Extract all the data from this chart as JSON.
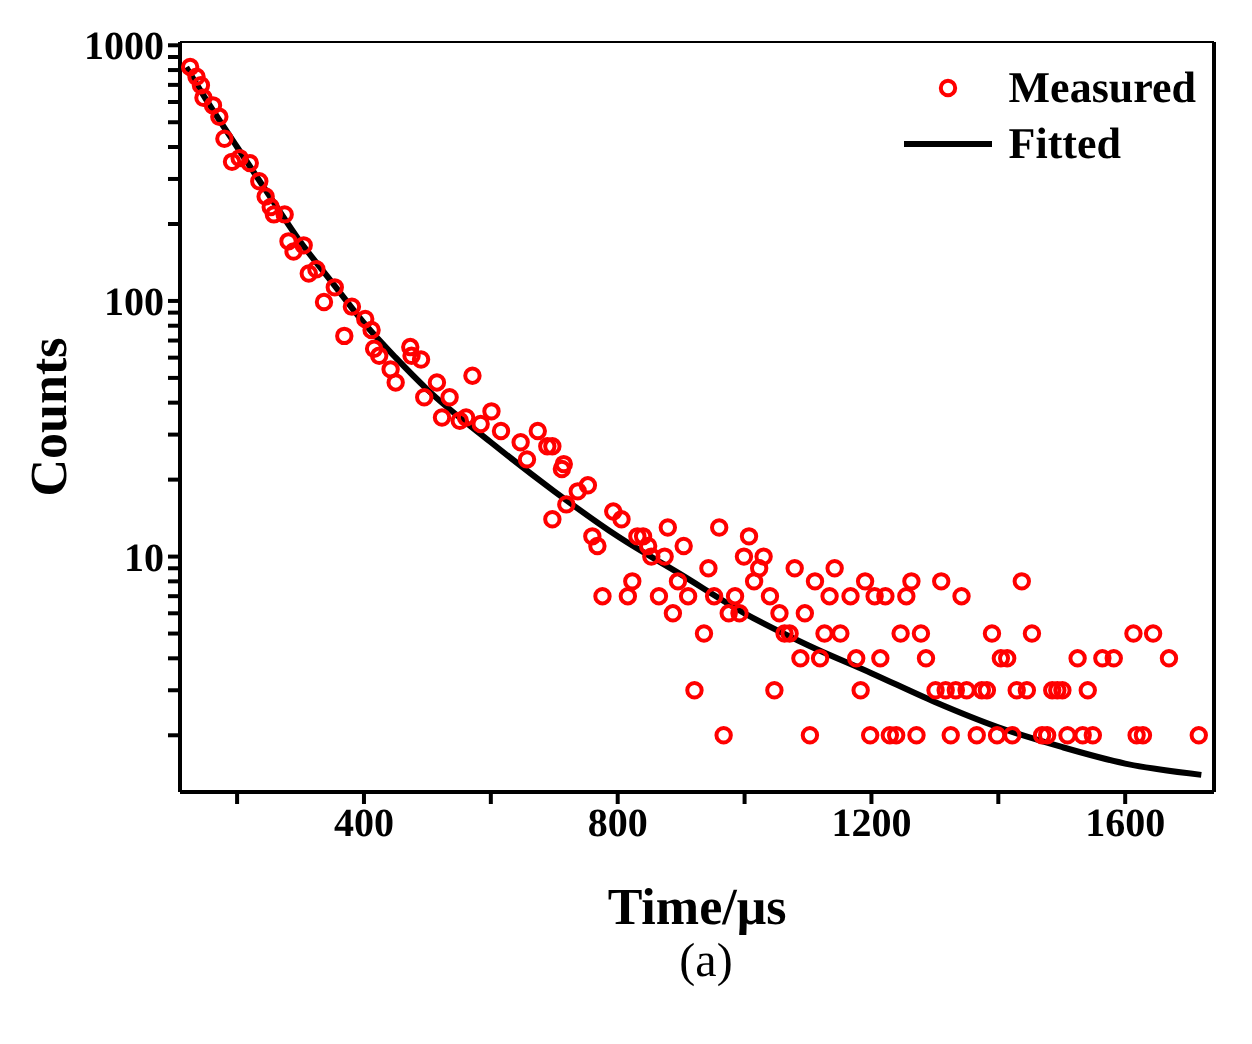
{
  "chart_data": {
    "type": "scatter",
    "xlabel": "Time/μs",
    "ylabel": "Counts",
    "annotations": [
      "(a)"
    ],
    "log": "y",
    "legend": "top right",
    "xlim": [
      110,
      1740
    ],
    "ylim": [
      1.2,
      1030
    ],
    "xticks": [
      {
        "value": 200,
        "label": null
      },
      400,
      {
        "value": 600,
        "label": null
      },
      800,
      {
        "value": 1000,
        "label": null
      },
      1200,
      {
        "value": 1400,
        "label": null
      },
      1600
    ],
    "yticks": [
      {
        "value": 2,
        "label": null
      },
      {
        "value": 3,
        "label": null
      },
      {
        "value": 4,
        "label": null
      },
      {
        "value": 5,
        "label": null
      },
      {
        "value": 6,
        "label": null
      },
      {
        "value": 7,
        "label": null
      },
      {
        "value": 8,
        "label": null
      },
      {
        "value": 9,
        "label": null
      },
      10,
      {
        "value": 20,
        "label": null
      },
      {
        "value": 30,
        "label": null
      },
      {
        "value": 40,
        "label": null
      },
      {
        "value": 50,
        "label": null
      },
      {
        "value": 60,
        "label": null
      },
      {
        "value": 70,
        "label": null
      },
      {
        "value": 80,
        "label": null
      },
      {
        "value": 90,
        "label": null
      },
      100,
      {
        "value": 200,
        "label": null
      },
      {
        "value": 300,
        "label": null
      },
      {
        "value": 400,
        "label": null
      },
      {
        "value": 500,
        "label": null
      },
      {
        "value": 600,
        "label": null
      },
      {
        "value": 700,
        "label": null
      },
      {
        "value": 800,
        "label": null
      },
      {
        "value": 900,
        "label": null
      },
      1000
    ],
    "series": [
      {
        "name": "Measured",
        "marker": "circle",
        "color": "#ff0000",
        "x": [
          126,
          136,
          143,
          147,
          162,
          172,
          180,
          192,
          204,
          220,
          235,
          245,
          253,
          258,
          275,
          281,
          289,
          305,
          313,
          325,
          337,
          354,
          369,
          381,
          402,
          412,
          416,
          424,
          442,
          450,
          473,
          475,
          490,
          495,
          515,
          523,
          535,
          551,
          561,
          571,
          584,
          601,
          616,
          647,
          657,
          674,
          689,
          697,
          697,
          712,
          715,
          719,
          737,
          753,
          760,
          768,
          776,
          793,
          806,
          816,
          823,
          831,
          840,
          848,
          853,
          865,
          874,
          879,
          887,
          895,
          904,
          911,
          921,
          936,
          943,
          952,
          960,
          967,
          975,
          985,
          992,
          999,
          1007,
          1015,
          1023,
          1030,
          1040,
          1047,
          1055,
          1063,
          1071,
          1079,
          1088,
          1095,
          1103,
          1111,
          1119,
          1126,
          1134,
          1142,
          1151,
          1167,
          1176,
          1183,
          1190,
          1198,
          1205,
          1214,
          1222,
          1229,
          1239,
          1246,
          1255,
          1263,
          1271,
          1278,
          1286,
          1301,
          1310,
          1317,
          1325,
          1333,
          1342,
          1350,
          1366,
          1374,
          1382,
          1390,
          1398,
          1404,
          1414,
          1422,
          1429,
          1437,
          1445,
          1453,
          1469,
          1477,
          1485,
          1493,
          1501,
          1509,
          1525,
          1533,
          1541,
          1549,
          1564,
          1582,
          1613,
          1618,
          1628,
          1644,
          1669,
          1716
        ],
        "values": [
          822,
          753,
          698,
          623,
          582,
          525,
          431,
          350,
          362,
          346,
          294,
          256,
          233,
          218,
          218,
          171,
          156,
          165,
          128,
          133,
          99,
          113,
          73,
          95,
          85,
          77,
          65,
          61,
          54,
          48,
          66,
          61,
          59,
          42,
          48,
          35,
          42,
          34,
          35,
          51,
          33,
          37,
          31,
          28,
          24,
          31,
          27,
          27,
          14,
          22,
          23,
          16,
          18,
          19,
          12,
          11,
          7,
          15,
          14,
          7,
          8,
          12,
          12,
          11,
          10,
          7,
          10,
          13,
          6,
          8,
          11,
          7,
          3,
          5,
          9,
          7,
          13,
          2,
          6,
          7,
          6,
          10,
          12,
          8,
          9,
          10,
          7,
          3,
          6,
          5,
          5,
          9,
          4,
          6,
          2,
          8,
          4,
          5,
          7,
          9,
          5,
          7,
          4,
          3,
          8,
          2,
          7,
          4,
          7,
          2,
          2,
          5,
          7,
          8,
          2,
          5,
          4,
          3,
          8,
          3,
          2,
          3,
          7,
          3,
          2,
          3,
          3,
          5,
          2,
          4,
          4,
          2,
          3,
          8,
          3,
          5,
          2,
          2,
          3,
          3,
          3,
          2,
          4,
          2,
          3,
          2,
          4,
          4,
          5,
          2,
          2,
          5,
          4,
          2
        ]
      },
      {
        "name": "Fitted",
        "type": "line",
        "marker": "none",
        "line_style": "solid",
        "color": "#000000",
        "x": [
          120,
          150,
          200,
          250,
          300,
          350,
          400,
          450,
          500,
          600,
          700,
          800,
          900,
          1000,
          1100,
          1200,
          1300,
          1400,
          1500,
          1600,
          1720
        ],
        "values": [
          820,
          620,
          400,
          260,
          170,
          118,
          82,
          60,
          45,
          28,
          18,
          12,
          8.5,
          6,
          4.5,
          3.5,
          2.7,
          2.15,
          1.8,
          1.55,
          1.4
        ]
      }
    ]
  }
}
